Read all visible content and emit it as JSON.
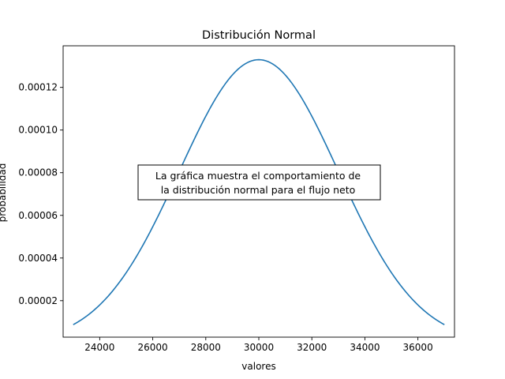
{
  "chart_data": {
    "type": "line",
    "title": "Distribución Normal",
    "xlabel": "valores",
    "ylabel": "probabilidad",
    "xlim": [
      22620,
      37380
    ],
    "ylim": [
      2.9e-06,
      0.0001395
    ],
    "xticks": [
      24000,
      26000,
      28000,
      30000,
      32000,
      34000,
      36000
    ],
    "xtick_labels": [
      "24000",
      "26000",
      "28000",
      "30000",
      "32000",
      "34000",
      "36000"
    ],
    "yticks": [
      2e-05,
      4e-05,
      6e-05,
      8e-05,
      0.0001,
      0.00012
    ],
    "ytick_labels": [
      "0.00002",
      "0.00004",
      "0.00006",
      "0.00008",
      "0.00010",
      "0.00012"
    ],
    "grid": false,
    "annotation": {
      "lines": [
        "La gráfica muestra el comportamiento de",
        "la distribución normal para el flujo neto"
      ]
    },
    "series": [
      {
        "color": "#1f77b4",
        "distribution": {
          "mean": 30000,
          "std": 3000
        },
        "x": [
          23000,
          23500,
          24000,
          24500,
          25000,
          25500,
          26000,
          26500,
          27000,
          27500,
          28000,
          28500,
          29000,
          29500,
          30000,
          30500,
          31000,
          31500,
          32000,
          32500,
          33000,
          33500,
          34000,
          34500,
          35000,
          35500,
          36000,
          36500,
          37000
        ],
        "y": [
          8.8e-06,
          1.35e-05,
          1.8e-05,
          2.36e-05,
          3.33e-05,
          4.32e-05,
          5.47e-05,
          6.74e-05,
          8.07e-05,
          9.4e-05,
          0.0001065,
          0.0001174,
          0.0001258,
          0.0001312,
          0.000133,
          0.0001312,
          0.0001258,
          0.0001174,
          0.0001065,
          9.4e-05,
          8.07e-05,
          6.74e-05,
          5.47e-05,
          4.32e-05,
          3.33e-05,
          2.36e-05,
          1.8e-05,
          1.35e-05,
          8.8e-06
        ]
      }
    ]
  }
}
